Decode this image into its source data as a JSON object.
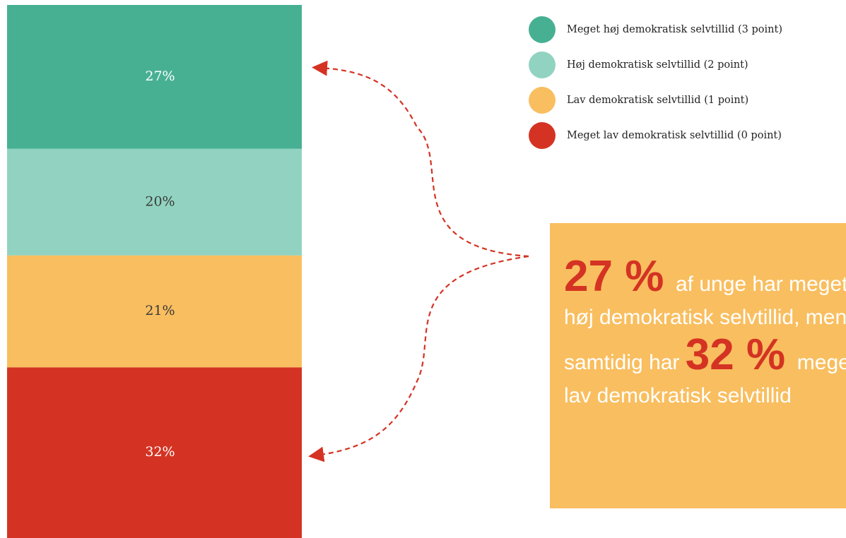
{
  "chart_data": {
    "type": "bar",
    "stacked": true,
    "categories": [
      null
    ],
    "ylim": [
      0,
      100
    ],
    "series": [
      {
        "name": "Meget høj demokratisk selvtillid (3 point)",
        "color": "#47b093",
        "label_color": "#ffffff",
        "values": [
          27
        ],
        "value_labels": [
          "27%"
        ]
      },
      {
        "name": "Høj demokratisk selvtillid (2 point)",
        "color": "#91d3c0",
        "label_color": "#3a3a3a",
        "values": [
          20
        ],
        "value_labels": [
          "20%"
        ]
      },
      {
        "name": "Lav demokratisk selvtillid (1 point)",
        "color": "#f9be5f",
        "label_color": "#3a3a3a",
        "values": [
          21
        ],
        "value_labels": [
          "21%"
        ]
      },
      {
        "name": "Meget lav demokratisk selvtillid (0 point)",
        "color": "#d43323",
        "label_color": "#ffffff",
        "values": [
          32
        ],
        "value_labels": [
          "32%"
        ]
      }
    ],
    "annotations": [
      "27 %",
      "af unge har meget høj demokratisk selvtillid, men samtidig",
      "har",
      "32 %",
      "meget lav demokratisk selvtillid"
    ]
  }
}
